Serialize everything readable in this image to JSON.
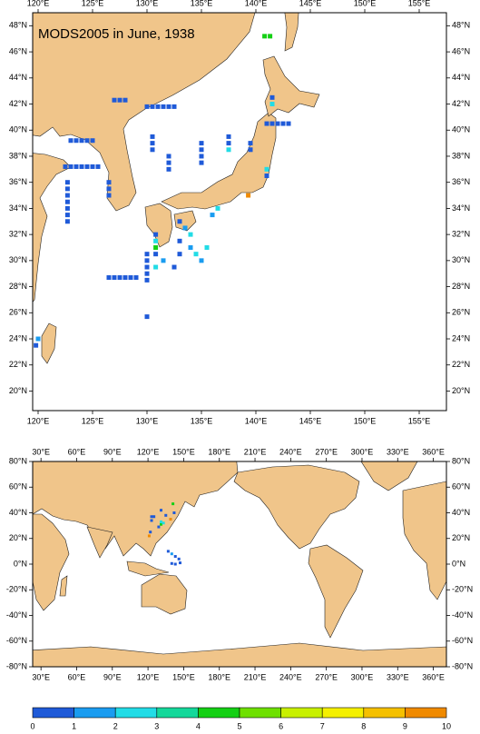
{
  "top_map": {
    "title": "MODS2005 in June, 1938",
    "xlim": [
      119.5,
      157.5
    ],
    "ylim": [
      18.5,
      49
    ],
    "xticks": [
      {
        "value": 120,
        "label": "120°E"
      },
      {
        "value": 125,
        "label": "125°E"
      },
      {
        "value": 130,
        "label": "130°E"
      },
      {
        "value": 135,
        "label": "135°E"
      },
      {
        "value": 140,
        "label": "140°E"
      },
      {
        "value": 145,
        "label": "145°E"
      },
      {
        "value": 150,
        "label": "150°E"
      },
      {
        "value": 155,
        "label": "155°E"
      }
    ],
    "yticks": [
      {
        "value": 20,
        "label": "20°N"
      },
      {
        "value": 22,
        "label": "22°N"
      },
      {
        "value": 24,
        "label": "24°N"
      },
      {
        "value": 26,
        "label": "26°N"
      },
      {
        "value": 28,
        "label": "28°N"
      },
      {
        "value": 30,
        "label": "30°N"
      },
      {
        "value": 32,
        "label": "32°N"
      },
      {
        "value": 34,
        "label": "34°N"
      },
      {
        "value": 36,
        "label": "36°N"
      },
      {
        "value": 38,
        "label": "38°N"
      },
      {
        "value": 40,
        "label": "40°N"
      },
      {
        "value": 42,
        "label": "42°N"
      },
      {
        "value": 44,
        "label": "44°N"
      },
      {
        "value": 46,
        "label": "46°N"
      },
      {
        "value": 48,
        "label": "48°N"
      }
    ],
    "observations": {
      "lon": [
        122.5,
        123,
        123.5,
        124,
        124.5,
        125,
        125.5,
        123,
        123.5,
        124,
        124.5,
        125,
        122.7,
        122.7,
        122.7,
        122.7,
        122.7,
        122.7,
        122.7,
        126.5,
        126.5,
        126.5,
        126.5,
        127,
        127.5,
        128,
        128.5,
        129,
        130,
        130,
        130,
        130,
        130,
        130.8,
        130.8,
        130.8,
        130.8,
        130.8,
        131.5,
        130,
        130.5,
        131,
        131.5,
        132,
        132.5,
        127,
        127.5,
        128,
        130.5,
        130.5,
        130.5,
        132,
        132,
        132,
        135,
        135,
        135,
        135,
        137.5,
        137.5,
        137.5,
        139.5,
        139.5,
        141,
        141.5,
        142,
        142.5,
        143,
        141.5,
        141.5,
        141,
        141,
        140.8,
        141.3,
        139.3,
        133,
        133.5,
        134,
        134,
        134.5,
        135,
        133,
        133,
        132.5,
        136,
        136.5,
        135.5,
        130,
        119.8,
        120
      ],
      "lat": [
        37.2,
        37.2,
        37.2,
        37.2,
        37.2,
        37.2,
        37.2,
        39.2,
        39.2,
        39.2,
        39.2,
        39.2,
        33,
        33.5,
        34,
        34.5,
        35,
        35.5,
        36,
        36,
        35.5,
        35,
        28.7,
        28.7,
        28.7,
        28.7,
        28.7,
        28.7,
        28.5,
        29,
        29.5,
        30,
        30.5,
        29.5,
        30.5,
        31,
        31.5,
        32,
        30,
        41.8,
        41.8,
        41.8,
        41.8,
        41.8,
        41.8,
        42.3,
        42.3,
        42.3,
        39.5,
        39,
        38.5,
        38,
        37.5,
        37,
        39,
        38.5,
        38,
        37.5,
        39.5,
        39,
        38.5,
        39,
        38.5,
        40.5,
        40.5,
        40.5,
        40.5,
        40.5,
        42,
        42.5,
        37,
        36.5,
        47.2,
        47.2,
        35,
        33,
        32.5,
        32,
        31,
        30.5,
        30,
        31.5,
        30.5,
        29.5,
        33.5,
        34,
        31,
        25.7,
        23.5,
        24
      ],
      "values": [
        0.5,
        0.5,
        0.5,
        0.5,
        0.5,
        0.5,
        0.5,
        0.5,
        0.5,
        0.5,
        0.5,
        0.5,
        0.5,
        0.5,
        0.5,
        0.5,
        0.5,
        0.5,
        0.5,
        0.5,
        0.5,
        0.5,
        0.5,
        0.5,
        0.5,
        0.5,
        0.5,
        0.5,
        0.5,
        0.5,
        0.5,
        0.5,
        0.5,
        2.5,
        0.5,
        4.5,
        2.5,
        0.5,
        1.5,
        0.5,
        0.5,
        0.5,
        0.5,
        0.5,
        0.5,
        0.5,
        0.5,
        0.5,
        0.5,
        0.5,
        0.5,
        0.5,
        0.5,
        0.5,
        0.5,
        0.5,
        0.5,
        0.5,
        0.5,
        0.5,
        2.5,
        0.5,
        0.5,
        0.5,
        0.5,
        0.5,
        0.5,
        0.5,
        2.5,
        0.5,
        2.5,
        0.5,
        4.5,
        4.5,
        9.5,
        0.5,
        1.5,
        2.5,
        1.5,
        2.5,
        1.5,
        0.5,
        0.5,
        0.5,
        1.5,
        2.5,
        2.5,
        0.5,
        0.5,
        1.5
      ]
    }
  },
  "global_map": {
    "xlim": [
      23,
      371
    ],
    "ylim": [
      -80,
      80
    ],
    "xticks": [
      {
        "value": 30,
        "label": "30°E"
      },
      {
        "value": 60,
        "label": "60°E"
      },
      {
        "value": 90,
        "label": "90°E"
      },
      {
        "value": 120,
        "label": "120°E"
      },
      {
        "value": 150,
        "label": "150°E"
      },
      {
        "value": 180,
        "label": "180°E"
      },
      {
        "value": 210,
        "label": "210°E"
      },
      {
        "value": 240,
        "label": "240°E"
      },
      {
        "value": 270,
        "label": "270°E"
      },
      {
        "value": 300,
        "label": "300°E"
      },
      {
        "value": 330,
        "label": "330°E"
      },
      {
        "value": 360,
        "label": "360°E"
      }
    ],
    "yticks": [
      {
        "value": -80,
        "label": "-80°N"
      },
      {
        "value": -60,
        "label": "-60°N"
      },
      {
        "value": -40,
        "label": "-40°N"
      },
      {
        "value": -20,
        "label": "-20°N"
      },
      {
        "value": 0,
        "label": "0°N"
      },
      {
        "value": 20,
        "label": "20°N"
      },
      {
        "value": 40,
        "label": "40°N"
      },
      {
        "value": 60,
        "label": "60°N"
      },
      {
        "value": 80,
        "label": "80°N"
      }
    ],
    "observations": {
      "lon": [
        123,
        125,
        123,
        129,
        131,
        131,
        133,
        135,
        131,
        141,
        142,
        139,
        121,
        122,
        137,
        140,
        143,
        146,
        147,
        143,
        140
      ],
      "lat": [
        37,
        37,
        34,
        29,
        31,
        33,
        32,
        38,
        42,
        47,
        40,
        35,
        22,
        25,
        10,
        8,
        6,
        4,
        1,
        0,
        0.5
      ],
      "values": [
        0.5,
        0.5,
        0.5,
        0.5,
        4.5,
        2.5,
        2.5,
        0.5,
        0.5,
        4.5,
        0.5,
        9.5,
        9.5,
        0.5,
        0.5,
        1.5,
        0.5,
        0.5,
        0.5,
        0.5,
        0.5
      ]
    }
  },
  "colorbar": {
    "levels": [
      0,
      1,
      2,
      3,
      4,
      5,
      6,
      7,
      8,
      9,
      10
    ],
    "colors": [
      "#1f5ad8",
      "#1a9cf0",
      "#22dce6",
      "#14d89a",
      "#14d014",
      "#6ee000",
      "#c8f000",
      "#f5f000",
      "#f5c000",
      "#f08a00",
      "#f04a10"
    ]
  }
}
